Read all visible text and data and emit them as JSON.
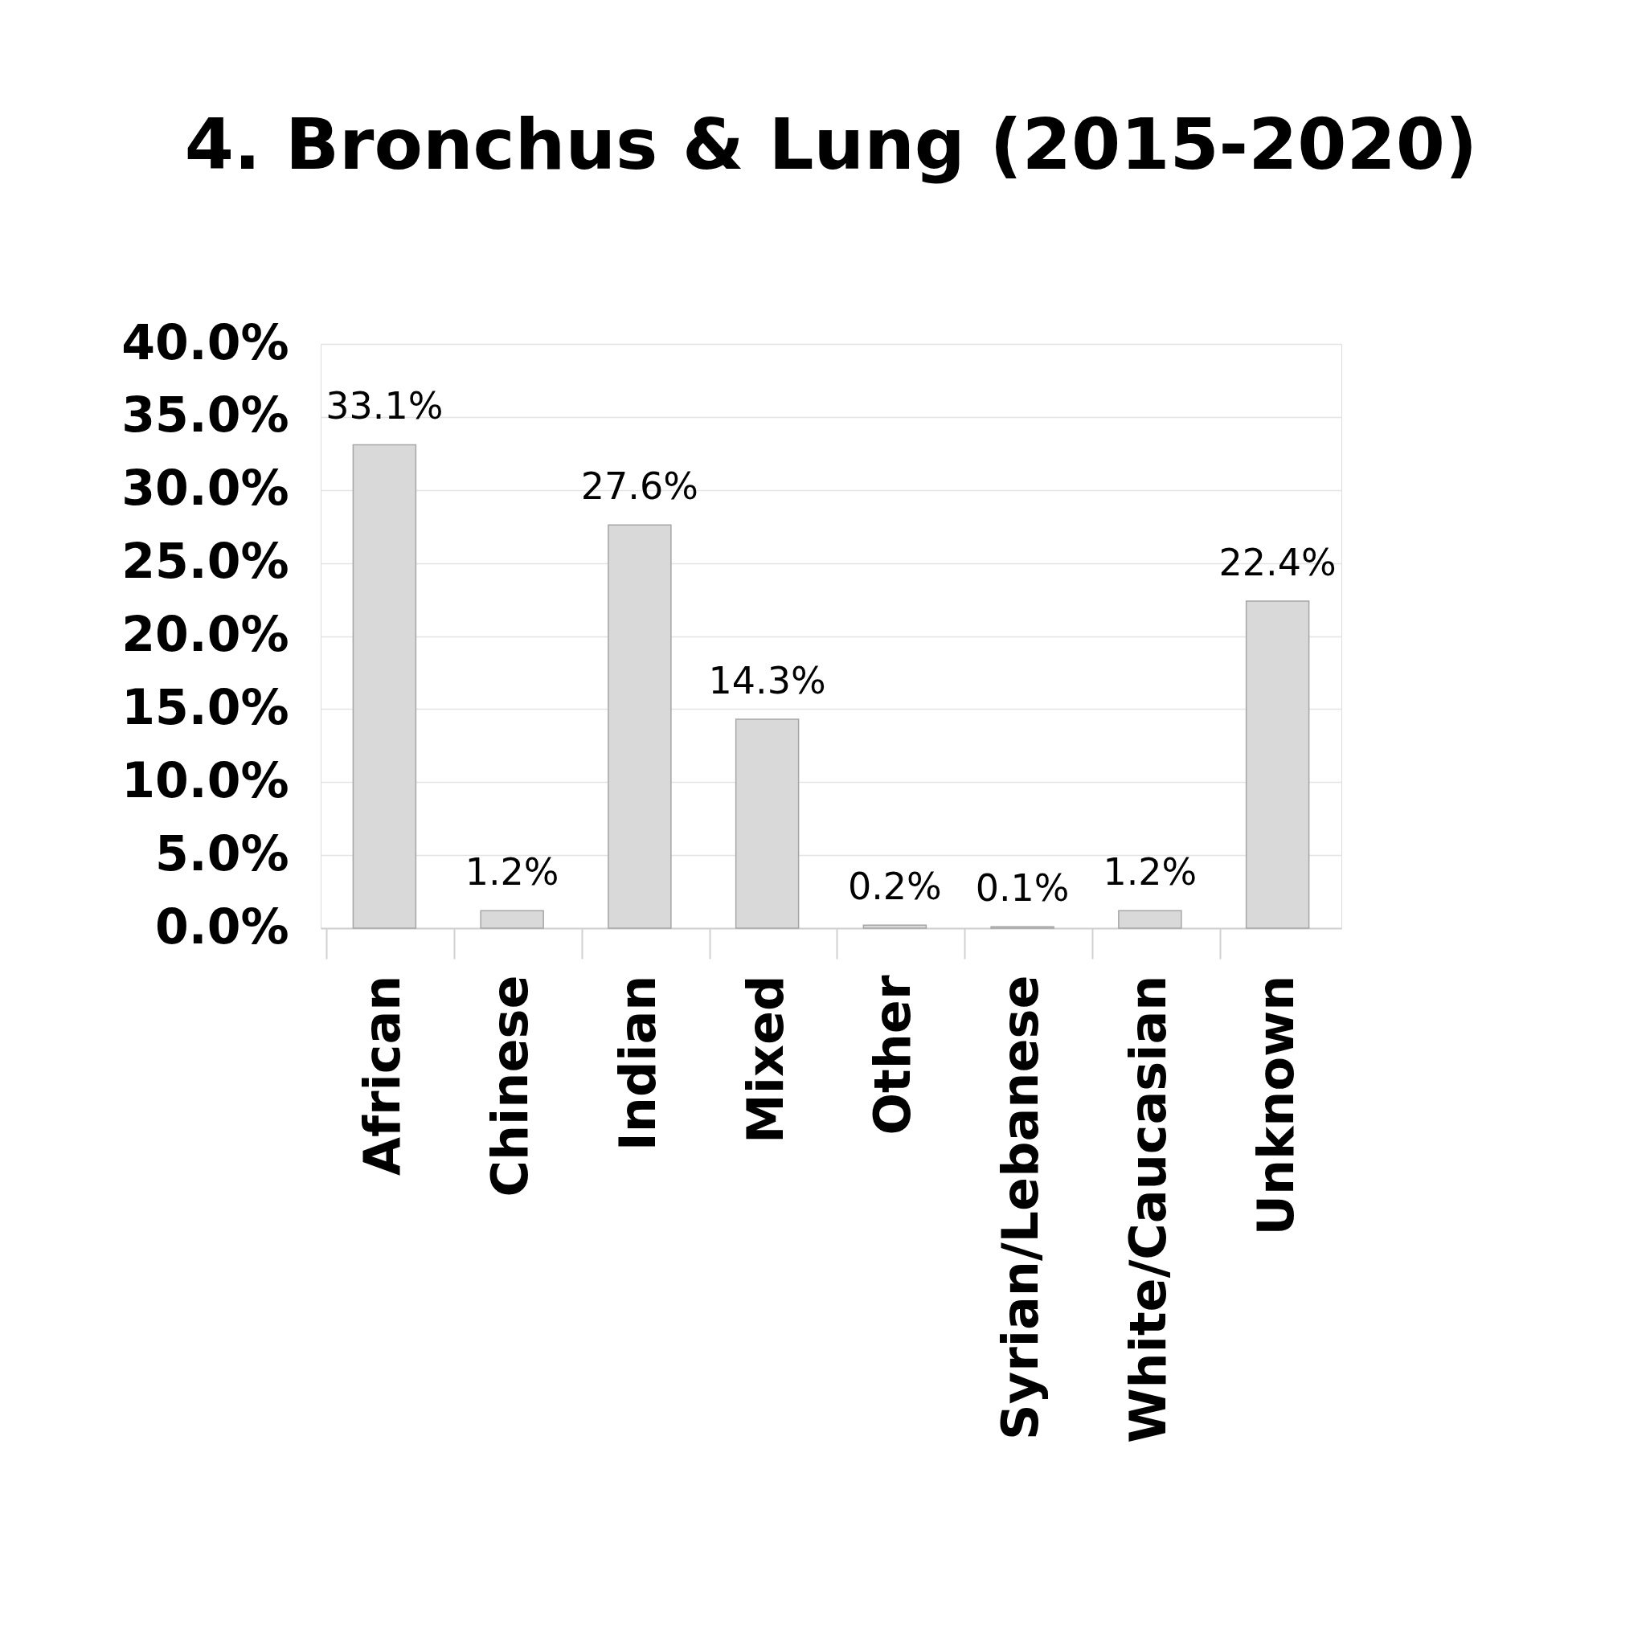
{
  "chart_data": {
    "type": "bar",
    "title": "4. Bronchus & Lung (2015-2020)",
    "categories": [
      "African",
      "Chinese",
      "Indian",
      "Mixed",
      "Other",
      "Syrian/Lebanese",
      "White/Caucasian",
      "Unknown"
    ],
    "values": [
      33.1,
      1.2,
      27.6,
      14.3,
      0.2,
      0.1,
      1.2,
      22.4
    ],
    "value_labels": [
      "33.1%",
      "1.2%",
      "27.6%",
      "14.3%",
      "0.2%",
      "0.1%",
      "1.2%",
      "22.4%"
    ],
    "color": "#d9d9d9",
    "ylim": [
      0,
      40
    ],
    "yticks": [
      {
        "value": 0,
        "label": "0.0%"
      },
      {
        "value": 5,
        "label": "5.0%"
      },
      {
        "value": 10,
        "label": "10.0%"
      },
      {
        "value": 15,
        "label": "15.0%"
      },
      {
        "value": 20,
        "label": "20.0%"
      },
      {
        "value": 25,
        "label": "25.0%"
      },
      {
        "value": 30,
        "label": "30.0%"
      },
      {
        "value": 35,
        "label": "35.0%"
      },
      {
        "value": 40,
        "label": "40.0%"
      }
    ],
    "grid": "y"
  }
}
